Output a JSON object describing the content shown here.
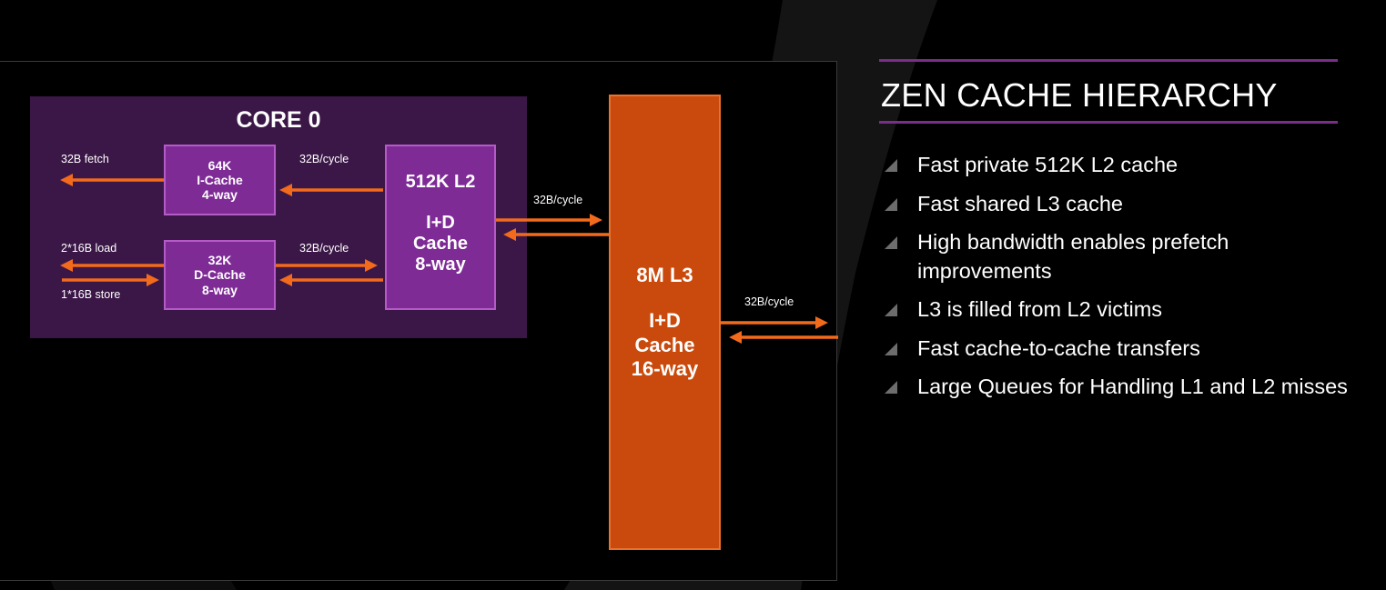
{
  "slide": {
    "title": "ZEN CACHE HIERARCHY",
    "bullets": [
      "Fast private 512K L2 cache",
      "Fast shared L3 cache",
      "High bandwidth enables prefetch improvements",
      "L3 is filled from L2 victims",
      "Fast cache-to-cache transfers",
      "Large Queues for Handling L1 and L2 misses"
    ],
    "colors": {
      "background": "#000000",
      "core_region": "#3b1747",
      "l1_l2_cache": "#7e2b96",
      "l3_cache": "#c94a0c",
      "arrow": "#f26a1b",
      "title_rule": "#7b2d8c",
      "bullet_marker": "#6d6d6d"
    }
  },
  "diagram": {
    "core_title": "CORE 0",
    "icache": {
      "line1": "64K",
      "line2": "I-Cache",
      "line3": "4-way"
    },
    "dcache": {
      "line1": "32K",
      "line2": "D-Cache",
      "line3": "8-way"
    },
    "l2": {
      "line1": "512K L2",
      "line2": "I+D",
      "line3": "Cache",
      "line4": "8-way"
    },
    "l3": {
      "line1": "8M L3",
      "line2": "I+D",
      "line3": "Cache",
      "line4": "16-way"
    },
    "labels": {
      "fetch": "32B fetch",
      "load": "2*16B load",
      "store": "1*16B store",
      "icache_l2_bw": "32B/cycle",
      "dcache_l2_bw": "32B/cycle",
      "l2_l3_bw": "32B/cycle",
      "l3_out_bw": "32B/cycle"
    }
  }
}
